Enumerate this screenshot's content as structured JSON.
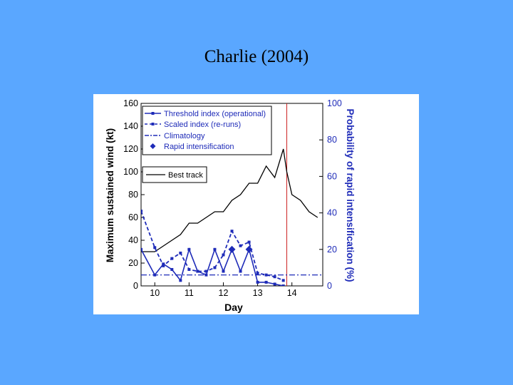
{
  "slide": {
    "title": "Charlie (2004)"
  },
  "chart_data": {
    "type": "line",
    "xlabel": "Day",
    "ylabel_left": "Maximum sustained wind (kt)",
    "ylabel_right": "Probability of rapid intensification (%)",
    "xlim": [
      9.6,
      14.9
    ],
    "ylim_left": [
      0,
      160
    ],
    "ylim_right": [
      0,
      100
    ],
    "x_ticks": [
      10,
      11,
      12,
      13,
      14
    ],
    "y_ticks_left": [
      0,
      20,
      40,
      60,
      80,
      100,
      120,
      140,
      160
    ],
    "y_ticks_right": [
      0,
      20,
      40,
      60,
      80,
      100
    ],
    "legend_box_1": [
      "Threshold index (operational)",
      "Scaled index (re-runs)",
      "Climatology",
      "Rapid intensification"
    ],
    "legend_box_2": [
      "Best track"
    ],
    "vertical_line": {
      "x": 13.85,
      "color": "#cc2222"
    },
    "colors": {
      "probability": "#1e2bb8",
      "best_track": "#000000",
      "axis_right": "#1e2bb8"
    },
    "series": [
      {
        "name": "Best track",
        "axis": "left",
        "style": "solid",
        "x": [
          9.6,
          10.0,
          10.25,
          10.5,
          10.75,
          11.0,
          11.25,
          11.5,
          11.75,
          12.0,
          12.25,
          12.5,
          12.75,
          13.0,
          13.25,
          13.5,
          13.75,
          13.85,
          14.0,
          14.25,
          14.5,
          14.75
        ],
        "y": [
          30,
          30,
          35,
          40,
          45,
          55,
          55,
          60,
          65,
          65,
          75,
          80,
          90,
          90,
          105,
          95,
          120,
          100,
          80,
          75,
          65,
          60
        ]
      },
      {
        "name": "Threshold index (operational)",
        "axis": "right",
        "style": "solid-marker",
        "x": [
          9.6,
          10.0,
          10.25,
          10.5,
          10.75,
          11.0,
          11.25,
          11.5,
          11.75,
          12.0,
          12.25,
          12.5,
          12.75,
          13.0,
          13.25,
          13.5,
          13.75
        ],
        "y": [
          20,
          6,
          12,
          9,
          3,
          20,
          8,
          6,
          20,
          8,
          20,
          8,
          20,
          2,
          2,
          1,
          0
        ]
      },
      {
        "name": "Scaled index (re-runs)",
        "axis": "right",
        "style": "dashed-marker",
        "x": [
          9.6,
          10.0,
          10.25,
          10.5,
          10.75,
          11.0,
          11.25,
          11.5,
          11.75,
          12.0,
          12.25,
          12.5,
          12.75,
          13.0,
          13.25,
          13.5,
          13.75
        ],
        "y": [
          41,
          21,
          11,
          15,
          18,
          9,
          8,
          8,
          10,
          17,
          30,
          22,
          24,
          7,
          6,
          5,
          3
        ]
      },
      {
        "name": "Climatology",
        "axis": "right",
        "style": "dashdot",
        "x": [
          9.6,
          14.9
        ],
        "y": [
          6,
          6
        ]
      },
      {
        "name": "Rapid intensification",
        "axis": "right",
        "style": "diamond",
        "x": [
          12.25,
          12.75
        ],
        "y": [
          20,
          20
        ]
      }
    ]
  }
}
